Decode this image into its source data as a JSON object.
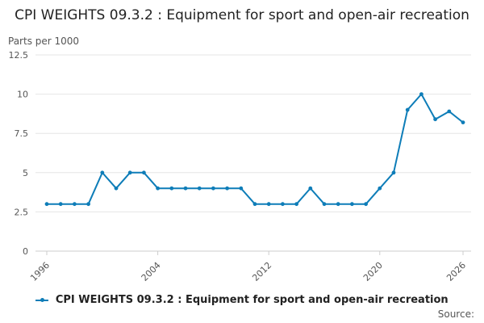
{
  "chart_title": "CPI WEIGHTS 09.3.2 : Equipment for sport and open-air recreation",
  "units_label": "Parts per 1000",
  "source_label": "Source:",
  "colors": {
    "series": "#0e7db8",
    "grid": "#e6e6e6",
    "axis": "#cccccc"
  },
  "chart_data": {
    "type": "line",
    "title": "CPI WEIGHTS 09.3.2 : Equipment for sport and open-air recreation",
    "ylabel": "Parts per 1000",
    "xlim": [
      1996,
      2026
    ],
    "ylim": [
      0,
      12.5
    ],
    "yticks": [
      0,
      2.5,
      5,
      7.5,
      10,
      12.5
    ],
    "ytick_labels": [
      "0",
      "2.5",
      "5",
      "7.5",
      "10",
      "12.5"
    ],
    "xticks": [
      1996,
      2004,
      2012,
      2020,
      2026
    ],
    "xtick_labels": [
      "1996",
      "2004",
      "2012",
      "2020",
      "2026"
    ],
    "grid": true,
    "legend_position": "bottom",
    "series": [
      {
        "name": "CPI WEIGHTS 09.3.2 : Equipment for sport and open-air recreation",
        "x": [
          1996,
          1997,
          1998,
          1999,
          2000,
          2001,
          2002,
          2003,
          2004,
          2005,
          2006,
          2007,
          2008,
          2009,
          2010,
          2011,
          2012,
          2013,
          2014,
          2015,
          2016,
          2017,
          2018,
          2019,
          2020,
          2021,
          2022,
          2023,
          2024,
          2025,
          2026
        ],
        "y": [
          3,
          3,
          3,
          3,
          5,
          4,
          5,
          5,
          4,
          4,
          4,
          4,
          4,
          4,
          4,
          3,
          3,
          3,
          3,
          4,
          3,
          3,
          3,
          3,
          4,
          5,
          9,
          10,
          8.4,
          8.9,
          8.2
        ]
      }
    ]
  }
}
